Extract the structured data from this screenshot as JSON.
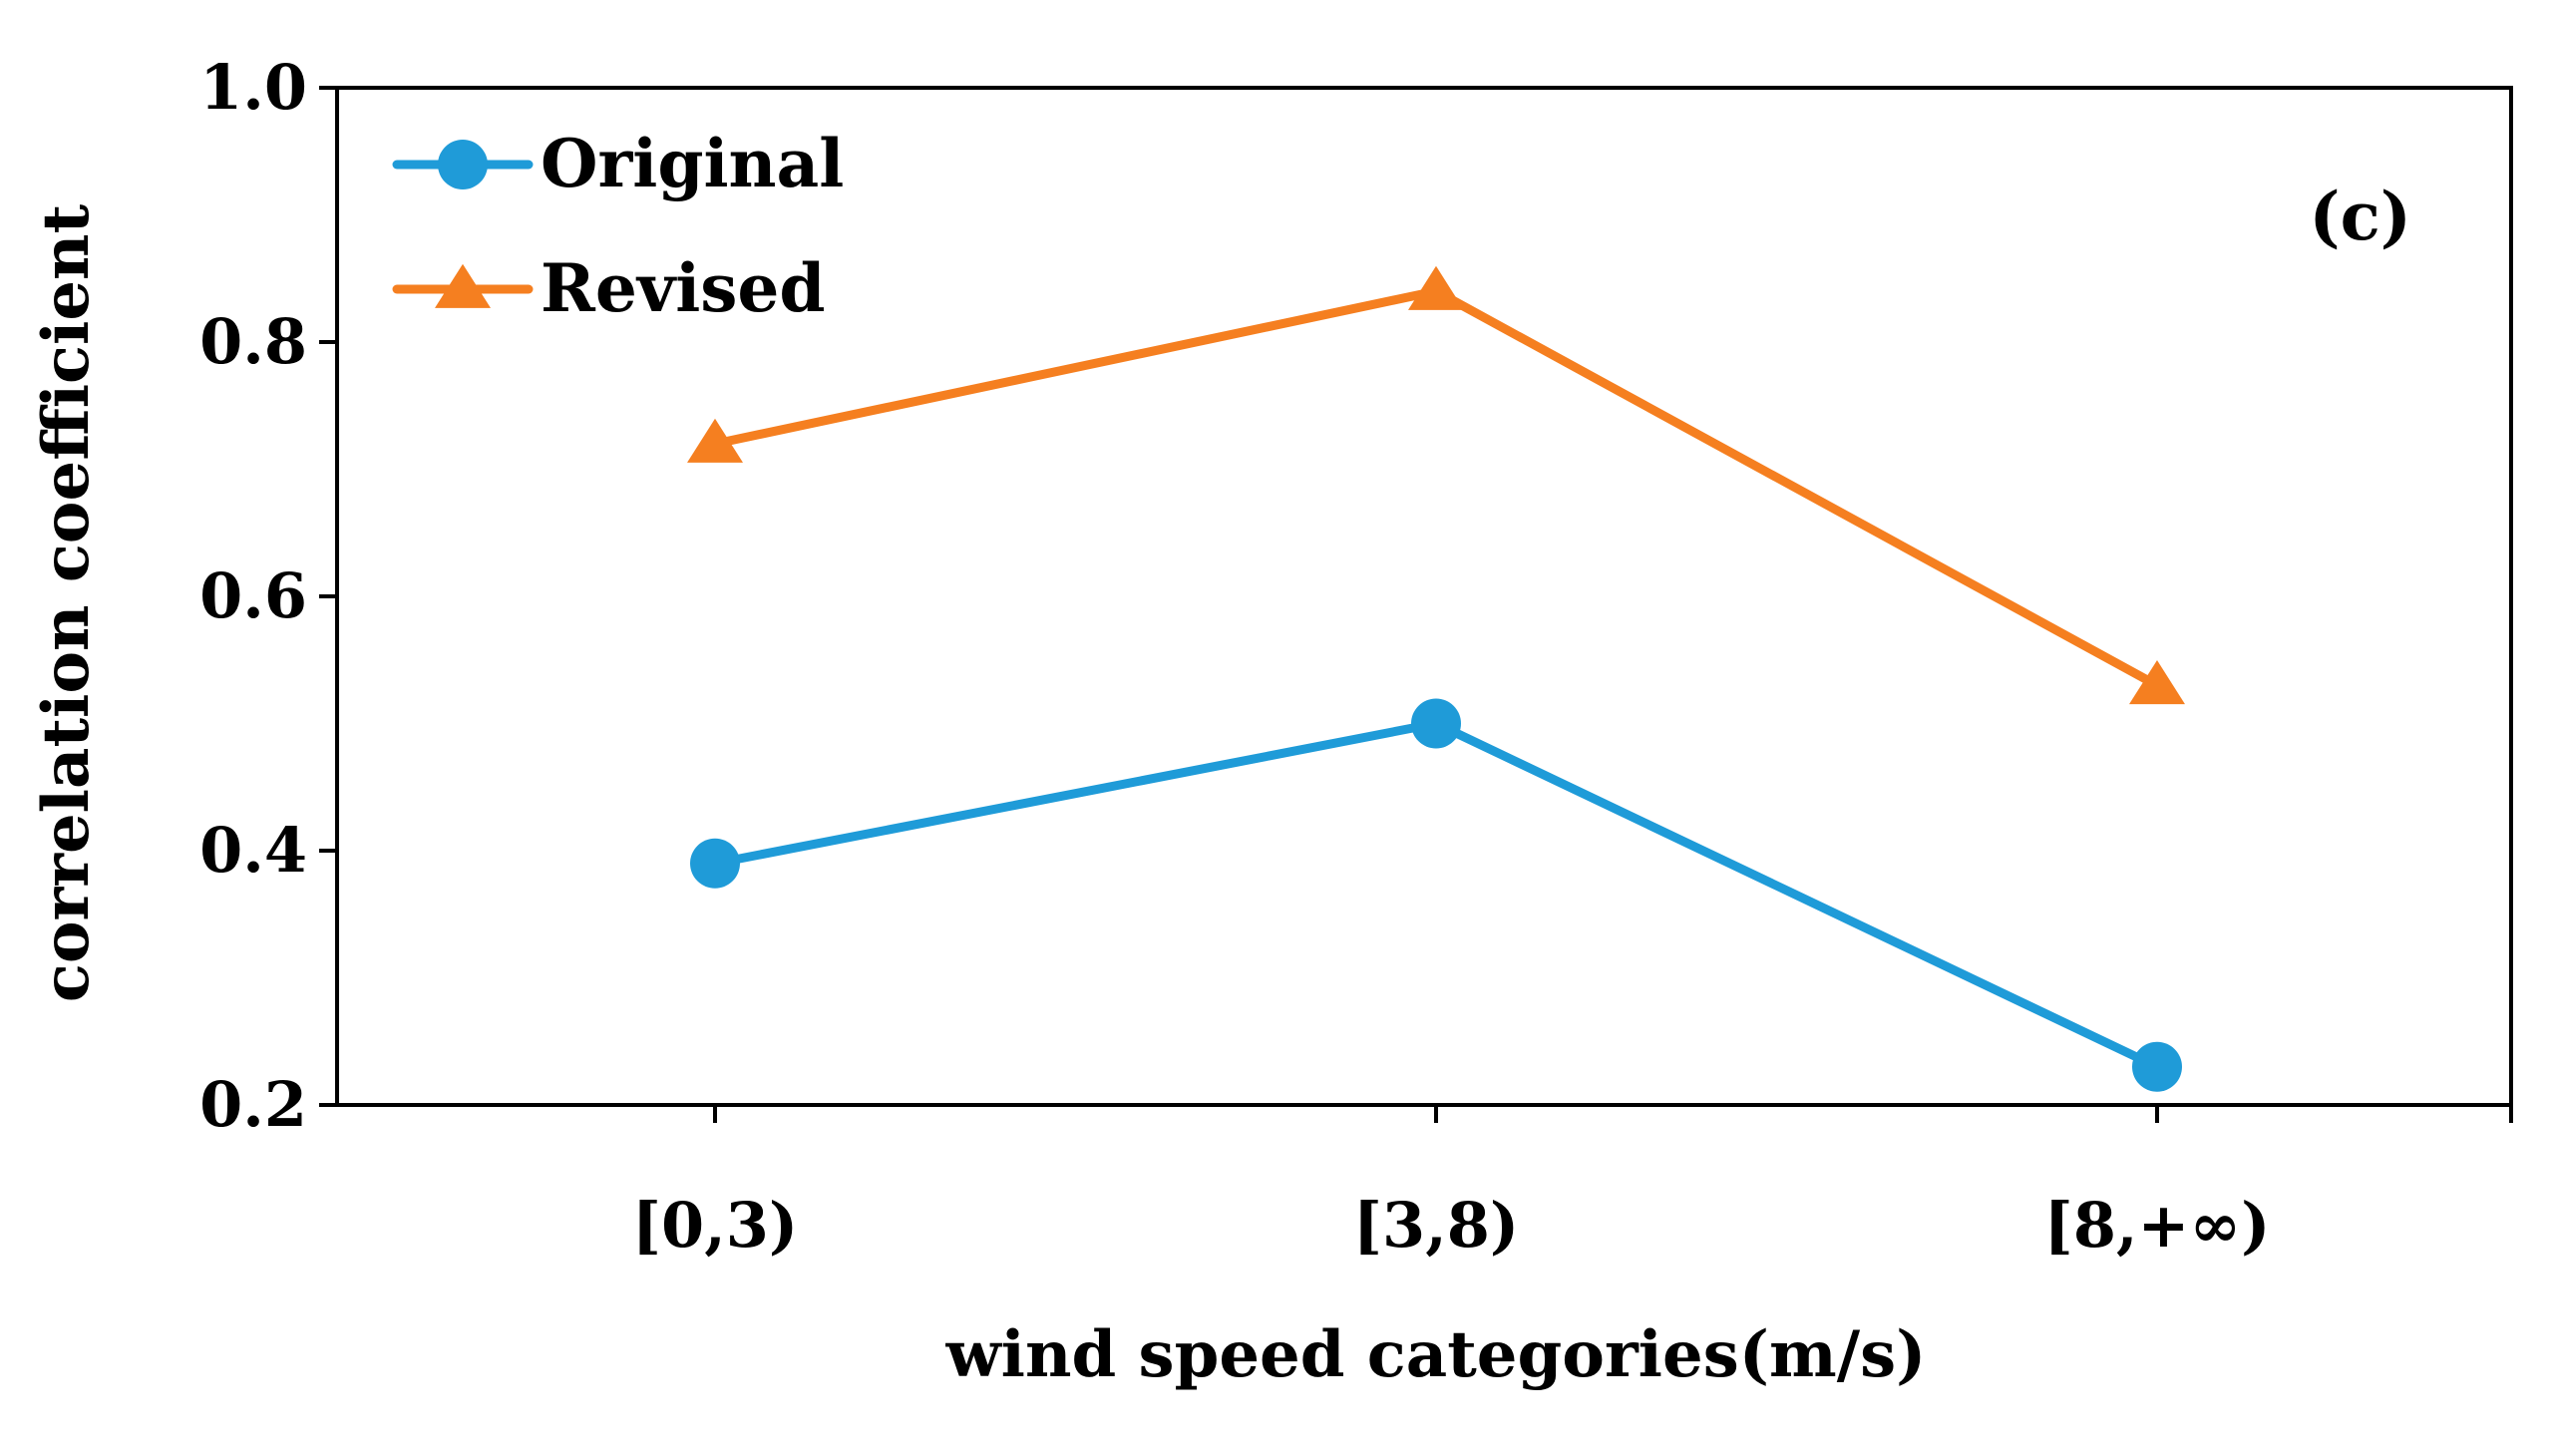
{
  "chart_data": {
    "type": "line",
    "title": "",
    "panel_label": "(c)",
    "categories": [
      "[0,3)",
      "[3,8)",
      "[8,+∞)"
    ],
    "xlabel": "wind speed categories(m/s)",
    "ylabel": "correlation coefficient",
    "ylim": [
      0.2,
      1.0
    ],
    "yticks": [
      0.2,
      0.4,
      0.6,
      0.8,
      1.0
    ],
    "ytick_labels": [
      "0.2",
      "0.4",
      "0.6",
      "0.8",
      "1.0"
    ],
    "grid": false,
    "legend_position": "top-left",
    "series": [
      {
        "name": "Original",
        "values": [
          0.39,
          0.5,
          0.23
        ],
        "color": "#1f9bd8",
        "marker": "circle"
      },
      {
        "name": "Revised",
        "values": [
          0.72,
          0.84,
          0.53
        ],
        "color": "#f57f20",
        "marker": "triangle"
      }
    ]
  }
}
